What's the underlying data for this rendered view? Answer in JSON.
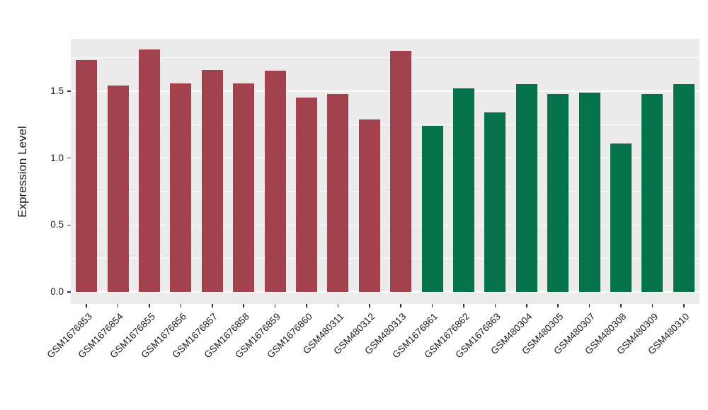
{
  "page": {
    "background": "#FFFFFF"
  },
  "chart_data": {
    "type": "bar",
    "title": "",
    "xlabel": "",
    "ylabel": "Expression Level",
    "legend": "none",
    "grid": "on",
    "panel_background": "#EBEBEB",
    "grid_color": "#FFFFFF",
    "axis_text_color": "#1A1A1A",
    "ylim": [
      -0.09,
      1.89
    ],
    "yticks": [
      0.0,
      0.5,
      1.0,
      1.5
    ],
    "ytick_labels": [
      "0.0",
      "0.5",
      "1.0",
      "1.5"
    ],
    "minor_ticks": [
      0.25,
      0.75,
      1.25,
      1.75
    ],
    "categories": [
      "GSM1676853",
      "GSM1676854",
      "GSM1676855",
      "GSM1676856",
      "GSM1676857",
      "GSM1676858",
      "GSM1676859",
      "GSM1676860",
      "GSM480311",
      "GSM480312",
      "GSM480313",
      "GSM1676861",
      "GSM1676862",
      "GSM1676863",
      "GSM480304",
      "GSM480305",
      "GSM480307",
      "GSM480308",
      "GSM480309",
      "GSM480310"
    ],
    "values": [
      1.73,
      1.54,
      1.81,
      1.56,
      1.66,
      1.56,
      1.65,
      1.45,
      1.48,
      1.29,
      1.8,
      1.24,
      1.52,
      1.34,
      1.55,
      1.48,
      1.49,
      1.11,
      1.48,
      1.55
    ],
    "bar_colors": [
      "#A2424F",
      "#A2424F",
      "#A2424F",
      "#A2424F",
      "#A2424F",
      "#A2424F",
      "#A2424F",
      "#A2424F",
      "#A2424F",
      "#A2424F",
      "#A2424F",
      "#057249",
      "#057249",
      "#057249",
      "#057249",
      "#057249",
      "#057249",
      "#057249",
      "#057249",
      "#057249"
    ],
    "groups": [
      {
        "label": "GSM1676853 - GSM480313",
        "color": "#A2424F",
        "count": 11
      },
      {
        "label": "GSM1676861 - GSM480310",
        "color": "#057249",
        "count": 9
      }
    ]
  }
}
